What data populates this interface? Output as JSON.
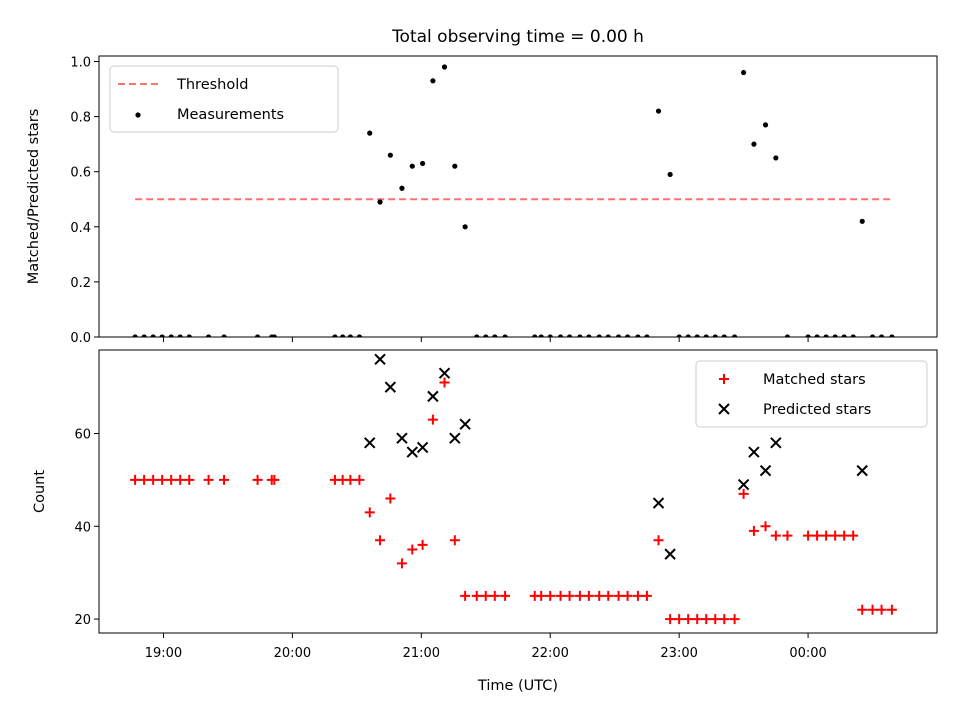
{
  "figure": {
    "title": "Total observing time = 0.00 h",
    "xlabel": "Time (UTC)",
    "x_ticks": [
      "19:00",
      "20:00",
      "21:00",
      "22:00",
      "23:00",
      "00:00"
    ]
  },
  "chart_data": [
    {
      "type": "scatter",
      "ylabel": "Matched/Predicted stars",
      "xlim_hours": [
        18.5,
        25.0
      ],
      "ylim": [
        0,
        1.02
      ],
      "y_ticks": [
        "0.0",
        "0.2",
        "0.4",
        "0.6",
        "0.8",
        "1.0"
      ],
      "legend_position": "upper-left",
      "series": [
        {
          "name": "Threshold",
          "kind": "dashed-line",
          "color": "#ff7070",
          "x": [
            18.78,
            24.65
          ],
          "y": [
            0.5,
            0.5
          ]
        },
        {
          "name": "Measurements",
          "kind": "dots",
          "color": "#000000",
          "points": [
            [
              18.78,
              0
            ],
            [
              18.85,
              0
            ],
            [
              18.92,
              0
            ],
            [
              18.99,
              0
            ],
            [
              19.06,
              0
            ],
            [
              19.13,
              0
            ],
            [
              19.2,
              0
            ],
            [
              19.35,
              0
            ],
            [
              19.47,
              0
            ],
            [
              19.73,
              0
            ],
            [
              19.84,
              0
            ],
            [
              19.86,
              0
            ],
            [
              20.33,
              0
            ],
            [
              20.39,
              0
            ],
            [
              20.45,
              0
            ],
            [
              20.52,
              0
            ],
            [
              20.6,
              0.74
            ],
            [
              20.68,
              0.49
            ],
            [
              20.76,
              0.66
            ],
            [
              20.85,
              0.54
            ],
            [
              20.93,
              0.62
            ],
            [
              21.01,
              0.63
            ],
            [
              21.09,
              0.93
            ],
            [
              21.18,
              0.98
            ],
            [
              21.26,
              0.62
            ],
            [
              21.34,
              0.4
            ],
            [
              21.43,
              0
            ],
            [
              21.5,
              0
            ],
            [
              21.57,
              0
            ],
            [
              21.65,
              0
            ],
            [
              21.88,
              0
            ],
            [
              21.93,
              0
            ],
            [
              22.0,
              0
            ],
            [
              22.08,
              0
            ],
            [
              22.15,
              0
            ],
            [
              22.23,
              0
            ],
            [
              22.3,
              0
            ],
            [
              22.38,
              0
            ],
            [
              22.45,
              0
            ],
            [
              22.53,
              0
            ],
            [
              22.6,
              0
            ],
            [
              22.68,
              0
            ],
            [
              22.75,
              0
            ],
            [
              22.84,
              0.82
            ],
            [
              22.93,
              0.59
            ],
            [
              23.0,
              0
            ],
            [
              23.07,
              0
            ],
            [
              23.14,
              0
            ],
            [
              23.21,
              0
            ],
            [
              23.28,
              0
            ],
            [
              23.35,
              0
            ],
            [
              23.43,
              0
            ],
            [
              23.5,
              0.96
            ],
            [
              23.58,
              0.7
            ],
            [
              23.67,
              0.77
            ],
            [
              23.75,
              0.65
            ],
            [
              23.84,
              0
            ],
            [
              24.0,
              0
            ],
            [
              24.07,
              0
            ],
            [
              24.14,
              0
            ],
            [
              24.21,
              0
            ],
            [
              24.28,
              0
            ],
            [
              24.35,
              0
            ],
            [
              24.42,
              0.42
            ],
            [
              24.5,
              0
            ],
            [
              24.57,
              0
            ],
            [
              24.65,
              0
            ]
          ]
        }
      ]
    },
    {
      "type": "scatter",
      "ylabel": "Count",
      "xlim_hours": [
        18.5,
        25.0
      ],
      "ylim": [
        17,
        78
      ],
      "y_ticks": [
        "20",
        "40",
        "60"
      ],
      "legend_position": "upper-right",
      "series": [
        {
          "name": "Matched stars",
          "marker": "plus",
          "color": "#ff0000",
          "points": [
            [
              18.78,
              50
            ],
            [
              18.85,
              50
            ],
            [
              18.92,
              50
            ],
            [
              18.99,
              50
            ],
            [
              19.06,
              50
            ],
            [
              19.13,
              50
            ],
            [
              19.2,
              50
            ],
            [
              19.35,
              50
            ],
            [
              19.47,
              50
            ],
            [
              19.73,
              50
            ],
            [
              19.84,
              50
            ],
            [
              19.86,
              50
            ],
            [
              20.33,
              50
            ],
            [
              20.39,
              50
            ],
            [
              20.45,
              50
            ],
            [
              20.52,
              50
            ],
            [
              20.6,
              43
            ],
            [
              20.68,
              37
            ],
            [
              20.76,
              46
            ],
            [
              20.85,
              32
            ],
            [
              20.93,
              35
            ],
            [
              21.01,
              36
            ],
            [
              21.09,
              63
            ],
            [
              21.18,
              71
            ],
            [
              21.26,
              37
            ],
            [
              21.34,
              25
            ],
            [
              21.43,
              25
            ],
            [
              21.5,
              25
            ],
            [
              21.57,
              25
            ],
            [
              21.65,
              25
            ],
            [
              21.88,
              25
            ],
            [
              21.93,
              25
            ],
            [
              22.0,
              25
            ],
            [
              22.08,
              25
            ],
            [
              22.15,
              25
            ],
            [
              22.23,
              25
            ],
            [
              22.3,
              25
            ],
            [
              22.38,
              25
            ],
            [
              22.45,
              25
            ],
            [
              22.53,
              25
            ],
            [
              22.6,
              25
            ],
            [
              22.68,
              25
            ],
            [
              22.75,
              25
            ],
            [
              22.84,
              37
            ],
            [
              22.93,
              20
            ],
            [
              23.0,
              20
            ],
            [
              23.07,
              20
            ],
            [
              23.14,
              20
            ],
            [
              23.21,
              20
            ],
            [
              23.28,
              20
            ],
            [
              23.35,
              20
            ],
            [
              23.43,
              20
            ],
            [
              23.5,
              47
            ],
            [
              23.58,
              39
            ],
            [
              23.67,
              40
            ],
            [
              23.75,
              38
            ],
            [
              23.84,
              38
            ],
            [
              24.0,
              38
            ],
            [
              24.07,
              38
            ],
            [
              24.14,
              38
            ],
            [
              24.21,
              38
            ],
            [
              24.28,
              38
            ],
            [
              24.35,
              38
            ],
            [
              24.42,
              22
            ],
            [
              24.5,
              22
            ],
            [
              24.57,
              22
            ],
            [
              24.65,
              22
            ]
          ]
        },
        {
          "name": "Predicted stars",
          "marker": "x",
          "color": "#000000",
          "points": [
            [
              20.6,
              58
            ],
            [
              20.68,
              76
            ],
            [
              20.76,
              70
            ],
            [
              20.85,
              59
            ],
            [
              20.93,
              56
            ],
            [
              21.01,
              57
            ],
            [
              21.09,
              68
            ],
            [
              21.18,
              73
            ],
            [
              21.26,
              59
            ],
            [
              21.34,
              62
            ],
            [
              22.84,
              45
            ],
            [
              22.93,
              34
            ],
            [
              23.5,
              49
            ],
            [
              23.58,
              56
            ],
            [
              23.67,
              52
            ],
            [
              23.75,
              58
            ],
            [
              24.42,
              52
            ]
          ]
        }
      ]
    }
  ]
}
